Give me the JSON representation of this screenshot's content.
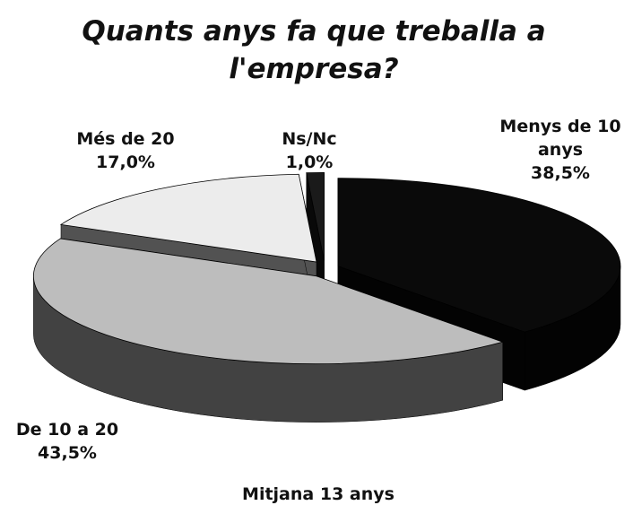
{
  "chart_data": {
    "type": "pie",
    "title": "Quants anys fa que treballa a l'empresa?",
    "categories": [
      "Menys de 10 anys",
      "De 10 a 20",
      "Més de 20",
      "Ns/Nc"
    ],
    "values": [
      38.5,
      43.5,
      17.0,
      1.0
    ],
    "value_labels": [
      "38,5%",
      "43,5%",
      "17,0%",
      "1,0%"
    ],
    "colors": [
      "#0a0a0a",
      "#bdbdbd",
      "#ececec",
      "#1a1a1a"
    ],
    "annotation": "Mitjana 13 anys"
  }
}
